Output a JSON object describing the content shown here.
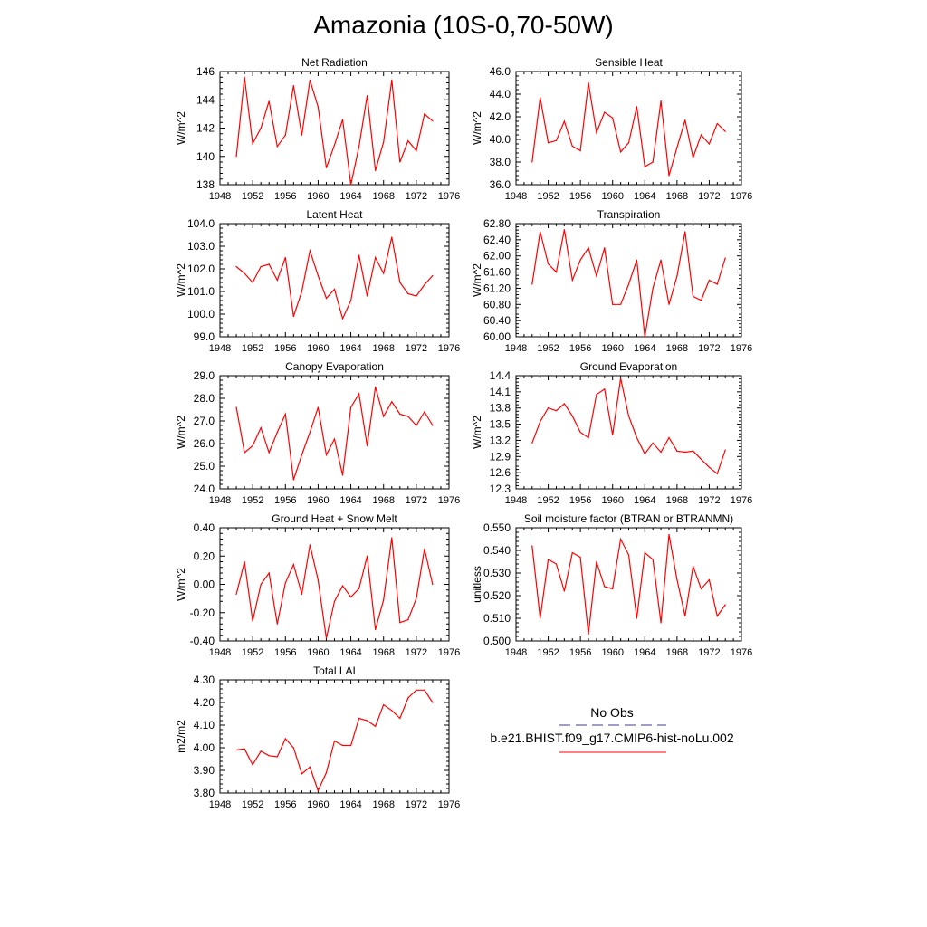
{
  "title": "Amazonia (10S-0,70-50W)",
  "chart_data": [
    {
      "type": "line",
      "title": "Net Radiation",
      "ylabel": "W/m^2",
      "ylim": [
        138,
        146
      ],
      "yticks": [
        "138",
        "140",
        "142",
        "144",
        "146"
      ],
      "xlim": [
        1948,
        1976
      ],
      "xticks": [
        "1948",
        "1952",
        "1956",
        "1960",
        "1964",
        "1968",
        "1972",
        "1976"
      ],
      "series": [
        {
          "name": "b.e21.BHIST.f09_g17.CMIP6-hist-noLu.002",
          "x": [
            1950,
            1951,
            1952,
            1953,
            1954,
            1955,
            1956,
            1957,
            1958,
            1959,
            1960,
            1961,
            1962,
            1963,
            1964,
            1965,
            1966,
            1967,
            1968,
            1969,
            1970,
            1971,
            1972,
            1973,
            1974
          ],
          "values": [
            140.0,
            145.6,
            140.9,
            142.0,
            143.9,
            140.7,
            141.5,
            145.0,
            141.5,
            145.4,
            143.5,
            139.2,
            140.8,
            142.6,
            138.0,
            140.7,
            144.3,
            139.0,
            141.0,
            145.4,
            139.6,
            141.1,
            140.4,
            143.0,
            142.5
          ]
        }
      ]
    },
    {
      "type": "line",
      "title": "Sensible Heat",
      "ylabel": "W/m^2",
      "ylim": [
        36,
        46
      ],
      "yticks": [
        "36.0",
        "38.0",
        "40.0",
        "42.0",
        "44.0",
        "46.0"
      ],
      "xlim": [
        1948,
        1976
      ],
      "xticks": [
        "1948",
        "1952",
        "1956",
        "1960",
        "1964",
        "1968",
        "1972",
        "1976"
      ],
      "series": [
        {
          "name": "b.e21.BHIST.f09_g17.CMIP6-hist-noLu.002",
          "x": [
            1950,
            1951,
            1952,
            1953,
            1954,
            1955,
            1956,
            1957,
            1958,
            1959,
            1960,
            1961,
            1962,
            1963,
            1964,
            1965,
            1966,
            1967,
            1968,
            1969,
            1970,
            1971,
            1972,
            1973,
            1974
          ],
          "values": [
            38.0,
            43.7,
            39.7,
            39.9,
            41.6,
            39.4,
            39.0,
            45.0,
            40.6,
            42.4,
            41.9,
            38.9,
            39.7,
            42.9,
            37.6,
            38.0,
            43.4,
            36.8,
            39.3,
            41.7,
            38.4,
            40.4,
            39.6,
            41.4,
            40.7
          ]
        }
      ]
    },
    {
      "type": "line",
      "title": "Latent Heat",
      "ylabel": "W/m^2",
      "ylim": [
        99,
        104
      ],
      "yticks": [
        "99.0",
        "100.0",
        "101.0",
        "102.0",
        "103.0",
        "104.0"
      ],
      "xlim": [
        1948,
        1976
      ],
      "xticks": [
        "1948",
        "1952",
        "1956",
        "1960",
        "1964",
        "1968",
        "1972",
        "1976"
      ],
      "series": [
        {
          "name": "b.e21.BHIST.f09_g17.CMIP6-hist-noLu.002",
          "x": [
            1950,
            1951,
            1952,
            1953,
            1954,
            1955,
            1956,
            1957,
            1958,
            1959,
            1960,
            1961,
            1962,
            1963,
            1964,
            1965,
            1966,
            1967,
            1968,
            1969,
            1970,
            1971,
            1972,
            1973,
            1974
          ],
          "values": [
            102.1,
            101.8,
            101.4,
            102.1,
            102.2,
            101.5,
            102.5,
            99.9,
            101.0,
            102.8,
            101.7,
            100.7,
            101.1,
            99.8,
            100.6,
            102.6,
            100.8,
            102.5,
            101.8,
            103.4,
            101.4,
            100.9,
            100.8,
            101.3,
            101.7
          ]
        }
      ]
    },
    {
      "type": "line",
      "title": "Transpiration",
      "ylabel": "W/m^2",
      "ylim": [
        60.0,
        62.8
      ],
      "yticks": [
        "60.00",
        "60.40",
        "60.80",
        "61.20",
        "61.60",
        "62.00",
        "62.40",
        "62.80"
      ],
      "xlim": [
        1948,
        1976
      ],
      "xticks": [
        "1948",
        "1952",
        "1956",
        "1960",
        "1964",
        "1968",
        "1972",
        "1976"
      ],
      "series": [
        {
          "name": "b.e21.BHIST.f09_g17.CMIP6-hist-noLu.002",
          "x": [
            1950,
            1951,
            1952,
            1953,
            1954,
            1955,
            1956,
            1957,
            1958,
            1959,
            1960,
            1961,
            1962,
            1963,
            1964,
            1965,
            1966,
            1967,
            1968,
            1969,
            1970,
            1971,
            1972,
            1973,
            1974
          ],
          "values": [
            61.3,
            62.6,
            61.8,
            61.6,
            62.65,
            61.4,
            61.9,
            62.2,
            61.5,
            62.2,
            60.8,
            60.8,
            61.3,
            61.9,
            60.0,
            61.2,
            61.9,
            60.8,
            61.5,
            62.6,
            61.0,
            60.9,
            61.4,
            61.3,
            61.95
          ]
        }
      ]
    },
    {
      "type": "line",
      "title": "Canopy Evaporation",
      "ylabel": "W/m^2",
      "ylim": [
        24,
        29
      ],
      "yticks": [
        "24.0",
        "25.0",
        "26.0",
        "27.0",
        "28.0",
        "29.0"
      ],
      "xlim": [
        1948,
        1976
      ],
      "xticks": [
        "1948",
        "1952",
        "1956",
        "1960",
        "1964",
        "1968",
        "1972",
        "1976"
      ],
      "series": [
        {
          "name": "b.e21.BHIST.f09_g17.CMIP6-hist-noLu.002",
          "x": [
            1950,
            1951,
            1952,
            1953,
            1954,
            1955,
            1956,
            1957,
            1958,
            1959,
            1960,
            1961,
            1962,
            1963,
            1964,
            1965,
            1966,
            1967,
            1968,
            1969,
            1970,
            1971,
            1972,
            1973,
            1974
          ],
          "values": [
            27.6,
            25.6,
            25.9,
            26.7,
            25.6,
            26.5,
            27.3,
            24.4,
            25.5,
            26.5,
            27.6,
            25.5,
            26.2,
            24.6,
            27.6,
            28.2,
            25.9,
            28.5,
            27.2,
            27.85,
            27.3,
            27.2,
            26.8,
            27.4,
            26.8
          ]
        }
      ]
    },
    {
      "type": "line",
      "title": "Ground Evaporation",
      "ylabel": "W/m^2",
      "ylim": [
        12.3,
        14.4
      ],
      "yticks": [
        "12.3",
        "12.6",
        "12.9",
        "13.2",
        "13.5",
        "13.8",
        "14.1",
        "14.4"
      ],
      "xlim": [
        1948,
        1976
      ],
      "xticks": [
        "1948",
        "1952",
        "1956",
        "1960",
        "1964",
        "1968",
        "1972",
        "1976"
      ],
      "series": [
        {
          "name": "b.e21.BHIST.f09_g17.CMIP6-hist-noLu.002",
          "x": [
            1950,
            1951,
            1952,
            1953,
            1954,
            1955,
            1956,
            1957,
            1958,
            1959,
            1960,
            1961,
            1962,
            1963,
            1964,
            1965,
            1966,
            1967,
            1968,
            1969,
            1970,
            1971,
            1972,
            1973,
            1974
          ],
          "values": [
            13.15,
            13.55,
            13.8,
            13.75,
            13.88,
            13.65,
            13.35,
            13.25,
            14.05,
            14.15,
            13.3,
            14.35,
            13.65,
            13.25,
            12.95,
            13.15,
            12.98,
            13.25,
            13.0,
            12.98,
            13.0,
            12.85,
            12.7,
            12.58,
            13.02
          ]
        }
      ]
    },
    {
      "type": "line",
      "title": "Ground Heat + Snow Melt",
      "ylabel": "W/m^2",
      "ylim": [
        -0.4,
        0.4
      ],
      "yticks": [
        "-0.40",
        "-0.20",
        "0.00",
        "0.20",
        "0.40"
      ],
      "xlim": [
        1948,
        1976
      ],
      "xticks": [
        "1948",
        "1952",
        "1956",
        "1960",
        "1964",
        "1968",
        "1972",
        "1976"
      ],
      "series": [
        {
          "name": "b.e21.BHIST.f09_g17.CMIP6-hist-noLu.002",
          "x": [
            1950,
            1951,
            1952,
            1953,
            1954,
            1955,
            1956,
            1957,
            1958,
            1959,
            1960,
            1961,
            1962,
            1963,
            1964,
            1965,
            1966,
            1967,
            1968,
            1969,
            1970,
            1971,
            1972,
            1973,
            1974
          ],
          "values": [
            -0.07,
            0.16,
            -0.26,
            0.0,
            0.08,
            -0.28,
            0.01,
            0.14,
            -0.07,
            0.28,
            0.03,
            -0.38,
            -0.12,
            -0.01,
            -0.09,
            -0.03,
            0.2,
            -0.32,
            -0.11,
            0.33,
            -0.27,
            -0.25,
            -0.1,
            0.25,
            0.0
          ]
        }
      ]
    },
    {
      "type": "line",
      "title": "Soil moisture factor (BTRAN or BTRANMN)",
      "ylabel": "unitless",
      "ylim": [
        0.5,
        0.55
      ],
      "yticks": [
        "0.500",
        "0.510",
        "0.520",
        "0.530",
        "0.540",
        "0.550"
      ],
      "xlim": [
        1948,
        1976
      ],
      "xticks": [
        "1948",
        "1952",
        "1956",
        "1960",
        "1964",
        "1968",
        "1972",
        "1976"
      ],
      "series": [
        {
          "name": "b.e21.BHIST.f09_g17.CMIP6-hist-noLu.002",
          "x": [
            1950,
            1951,
            1952,
            1953,
            1954,
            1955,
            1956,
            1957,
            1958,
            1959,
            1960,
            1961,
            1962,
            1963,
            1964,
            1965,
            1966,
            1967,
            1968,
            1969,
            1970,
            1971,
            1972,
            1973,
            1974
          ],
          "values": [
            0.542,
            0.51,
            0.536,
            0.534,
            0.522,
            0.539,
            0.537,
            0.503,
            0.535,
            0.524,
            0.523,
            0.545,
            0.538,
            0.51,
            0.539,
            0.536,
            0.508,
            0.547,
            0.527,
            0.511,
            0.533,
            0.523,
            0.527,
            0.511,
            0.516
          ]
        }
      ]
    },
    {
      "type": "line",
      "title": "Total LAI",
      "ylabel": "m2/m2",
      "ylim": [
        3.8,
        4.3
      ],
      "yticks": [
        "3.80",
        "3.90",
        "4.00",
        "4.10",
        "4.20",
        "4.30"
      ],
      "xlim": [
        1948,
        1976
      ],
      "xticks": [
        "1948",
        "1952",
        "1956",
        "1960",
        "1964",
        "1968",
        "1972",
        "1976"
      ],
      "series": [
        {
          "name": "b.e21.BHIST.f09_g17.CMIP6-hist-noLu.002",
          "x": [
            1950,
            1951,
            1952,
            1953,
            1954,
            1955,
            1956,
            1957,
            1958,
            1959,
            1960,
            1961,
            1962,
            1963,
            1964,
            1965,
            1966,
            1967,
            1968,
            1969,
            1970,
            1971,
            1972,
            1973,
            1974
          ],
          "values": [
            3.99,
            3.995,
            3.925,
            3.985,
            3.965,
            3.96,
            4.04,
            4.0,
            3.885,
            3.915,
            3.81,
            3.89,
            4.03,
            4.01,
            4.01,
            4.13,
            4.12,
            4.095,
            4.19,
            4.165,
            4.13,
            4.22,
            4.255,
            4.255,
            4.2
          ]
        }
      ]
    }
  ],
  "legend": {
    "obs_label": "No Obs",
    "model_label": "b.e21.BHIST.f09_g17.CMIP6-hist-noLu.002",
    "obs_color": "#3d3d8f",
    "model_color": "#ff0000"
  },
  "line_color": "#ff0000"
}
